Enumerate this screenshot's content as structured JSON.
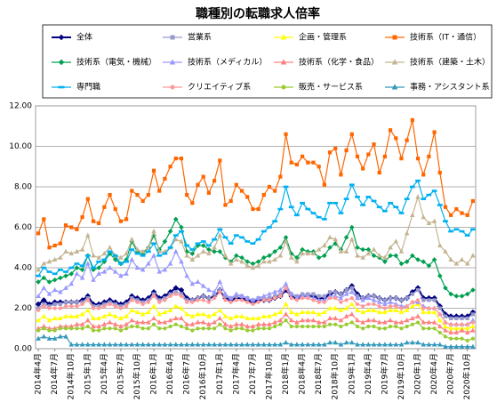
{
  "chart_data": {
    "type": "line",
    "title": "職種別の転職求人倍率",
    "categories": [
      "2014年4月",
      null,
      null,
      "2014年7月",
      null,
      null,
      "2014年10月",
      null,
      null,
      "2015年1月",
      null,
      null,
      "2015年4月",
      null,
      null,
      "2015年7月",
      null,
      null,
      "2015年10月",
      null,
      null,
      "2016年1月",
      null,
      null,
      "2016年4月",
      null,
      null,
      "2016年7月",
      null,
      null,
      "2016年10月",
      null,
      null,
      "2017年1月",
      null,
      null,
      "2017年4月",
      null,
      null,
      "2017年7月",
      null,
      null,
      "2017年10月",
      null,
      null,
      "2018年1月",
      null,
      null,
      "2018年4月",
      null,
      null,
      "2018年7月",
      null,
      null,
      "2018年10月",
      null,
      null,
      "2019年1月",
      null,
      null,
      "2019年4月",
      null,
      null,
      "2019年7月",
      null,
      null,
      "2019年10月",
      null,
      null,
      "2020年1月",
      null,
      null,
      "2020年4月",
      null,
      null,
      "2020年7月",
      null,
      null,
      "2020年10月",
      null
    ],
    "ylim": [
      0,
      12
    ],
    "yticks": [
      {
        "value": 0,
        "label": "0.00"
      },
      {
        "value": 2,
        "label": "2.00"
      },
      {
        "value": 4,
        "label": "4.00"
      },
      {
        "value": 6,
        "label": "6.00"
      },
      {
        "value": 8,
        "label": "8.00"
      },
      {
        "value": 10,
        "label": "10.00"
      },
      {
        "value": 12,
        "label": "12.00"
      }
    ],
    "grid": true,
    "series": [
      {
        "name": "全体",
        "color": "#000080",
        "marker": "diamond",
        "values": [
          2.2,
          2.4,
          2.2,
          2.3,
          2.3,
          2.3,
          2.3,
          2.3,
          2.4,
          2.6,
          2.2,
          2.2,
          2.3,
          2.4,
          2.3,
          2.2,
          2.3,
          2.6,
          2.5,
          2.4,
          2.5,
          2.8,
          2.5,
          2.6,
          2.8,
          3.0,
          2.9,
          2.5,
          2.4,
          2.5,
          2.6,
          2.5,
          2.6,
          2.9,
          2.5,
          2.4,
          2.5,
          2.5,
          2.4,
          2.3,
          2.4,
          2.4,
          2.4,
          2.5,
          2.6,
          2.9,
          2.6,
          2.5,
          2.6,
          2.6,
          2.6,
          2.5,
          2.5,
          2.7,
          2.8,
          2.7,
          2.9,
          3.1,
          2.7,
          2.5,
          2.6,
          2.6,
          2.5,
          2.4,
          2.5,
          2.5,
          2.4,
          2.5,
          2.8,
          3.0,
          2.5,
          2.5,
          2.5,
          2.1,
          1.7,
          1.6,
          1.6,
          1.6,
          1.6,
          1.8
        ]
      },
      {
        "name": "営業系",
        "color": "#9999cc",
        "marker": "square",
        "values": [
          2.0,
          2.2,
          2.1,
          2.2,
          2.2,
          2.3,
          2.3,
          2.3,
          2.3,
          2.5,
          2.1,
          2.1,
          2.2,
          2.3,
          2.2,
          2.1,
          2.2,
          2.5,
          2.4,
          2.3,
          2.4,
          2.7,
          2.4,
          2.5,
          2.7,
          2.8,
          2.7,
          2.4,
          2.4,
          2.5,
          2.6,
          2.5,
          2.7,
          2.9,
          2.6,
          2.5,
          2.6,
          2.6,
          2.5,
          2.4,
          2.5,
          2.5,
          2.5,
          2.6,
          2.7,
          3.0,
          2.7,
          2.6,
          2.7,
          2.7,
          2.7,
          2.6,
          2.6,
          2.8,
          2.8,
          2.7,
          2.9,
          3.0,
          2.6,
          2.5,
          2.6,
          2.6,
          2.5,
          2.4,
          2.5,
          2.5,
          2.4,
          2.5,
          2.7,
          2.9,
          2.4,
          2.4,
          2.4,
          2.0,
          1.6,
          1.5,
          1.5,
          1.5,
          1.5,
          1.7
        ]
      },
      {
        "name": "企画・管理系",
        "color": "#ffff00",
        "marker": "triangle",
        "values": [
          1.4,
          1.6,
          1.4,
          1.5,
          1.5,
          1.6,
          1.6,
          1.6,
          1.7,
          1.9,
          1.5,
          1.5,
          1.6,
          1.7,
          1.6,
          1.5,
          1.6,
          1.9,
          1.8,
          1.7,
          1.8,
          2.1,
          1.7,
          1.8,
          1.9,
          2.1,
          2.0,
          1.7,
          1.6,
          1.7,
          1.7,
          1.6,
          1.7,
          1.9,
          1.6,
          1.5,
          1.6,
          1.6,
          1.5,
          1.5,
          1.5,
          1.6,
          1.6,
          1.7,
          1.8,
          2.2,
          1.8,
          1.7,
          1.8,
          1.8,
          1.8,
          1.7,
          1.8,
          2.0,
          2.0,
          1.9,
          2.0,
          2.2,
          1.9,
          1.8,
          1.9,
          1.9,
          1.8,
          1.8,
          1.9,
          1.9,
          1.8,
          1.9,
          2.1,
          2.2,
          1.8,
          1.8,
          1.8,
          1.4,
          1.1,
          1.0,
          1.0,
          1.0,
          1.0,
          1.1
        ]
      },
      {
        "name": "技術系（IT・通信）",
        "color": "#ff6600",
        "marker": "square",
        "values": [
          5.7,
          6.4,
          5.0,
          5.1,
          5.2,
          6.1,
          6.0,
          5.9,
          6.5,
          7.4,
          6.3,
          6.2,
          7.0,
          7.6,
          6.9,
          6.3,
          6.4,
          7.8,
          7.6,
          7.3,
          7.6,
          8.8,
          7.8,
          8.4,
          9.0,
          9.4,
          9.4,
          7.6,
          7.2,
          8.1,
          8.5,
          7.7,
          8.3,
          9.3,
          7.1,
          7.3,
          8.1,
          7.8,
          7.5,
          6.9,
          6.9,
          7.6,
          8.0,
          7.8,
          8.5,
          10.6,
          9.2,
          9.1,
          9.5,
          9.2,
          9.2,
          9.0,
          8.1,
          9.7,
          9.9,
          8.6,
          9.8,
          10.6,
          9.5,
          8.9,
          9.6,
          10.1,
          8.7,
          9.5,
          10.8,
          10.4,
          9.4,
          10.3,
          11.3,
          9.4,
          8.6,
          9.5,
          10.7,
          8.7,
          7.0,
          6.6,
          6.9,
          6.7,
          6.6,
          7.3
        ]
      },
      {
        "name": "技術系（電気・機械）",
        "color": "#00a050",
        "marker": "diamond",
        "values": [
          3.3,
          3.5,
          3.3,
          3.4,
          3.5,
          3.6,
          3.7,
          4.0,
          3.9,
          4.6,
          3.9,
          4.0,
          4.3,
          4.7,
          4.4,
          4.2,
          4.4,
          5.3,
          4.8,
          4.7,
          5.0,
          5.6,
          4.9,
          5.3,
          5.8,
          6.4,
          6.0,
          4.8,
          4.7,
          5.1,
          5.1,
          4.9,
          4.8,
          4.8,
          4.5,
          4.3,
          4.6,
          4.5,
          4.3,
          4.2,
          4.3,
          4.5,
          4.6,
          4.8,
          5.0,
          5.5,
          4.7,
          4.5,
          4.9,
          4.8,
          4.8,
          4.5,
          4.6,
          5.0,
          5.2,
          4.9,
          5.5,
          6.0,
          5.0,
          4.9,
          4.9,
          4.6,
          4.5,
          4.3,
          4.6,
          4.6,
          4.2,
          4.3,
          4.6,
          4.4,
          4.3,
          4.1,
          4.4,
          3.6,
          3.0,
          2.7,
          2.6,
          2.6,
          2.7,
          2.9
        ]
      },
      {
        "name": "技術系（メディカル）",
        "color": "#9999ff",
        "marker": "triangle",
        "values": [
          2.6,
          3.0,
          2.7,
          2.9,
          2.8,
          3.0,
          3.2,
          3.7,
          3.5,
          4.2,
          3.4,
          3.7,
          3.8,
          4.0,
          3.8,
          3.6,
          3.7,
          4.4,
          4.0,
          3.9,
          4.2,
          4.6,
          3.8,
          3.9,
          4.2,
          4.8,
          4.3,
          3.6,
          3.2,
          3.3,
          3.1,
          2.9,
          2.8,
          3.3,
          2.7,
          2.5,
          2.7,
          2.6,
          2.5,
          2.4,
          2.5,
          2.6,
          2.7,
          2.8,
          2.9,
          3.2,
          2.7,
          2.5,
          2.6,
          2.6,
          2.5,
          2.4,
          2.4,
          2.6,
          2.6,
          2.5,
          2.7,
          2.8,
          2.5,
          2.4,
          2.5,
          2.4,
          2.3,
          2.2,
          2.3,
          2.2,
          2.1,
          2.1,
          2.3,
          2.3,
          2.1,
          2.0,
          2.0,
          1.7,
          1.3,
          1.2,
          1.2,
          1.2,
          1.2,
          1.4
        ]
      },
      {
        "name": "技術系（化学・食品）",
        "color": "#ff8080",
        "marker": "triangle",
        "values": [
          1.0,
          1.1,
          1.0,
          1.0,
          1.1,
          1.1,
          1.1,
          1.2,
          1.2,
          1.4,
          1.1,
          1.1,
          1.2,
          1.3,
          1.2,
          1.1,
          1.2,
          1.4,
          1.3,
          1.3,
          1.3,
          1.5,
          1.3,
          1.3,
          1.4,
          1.5,
          1.5,
          1.2,
          1.2,
          1.3,
          1.3,
          1.2,
          1.3,
          1.5,
          1.2,
          1.1,
          1.2,
          1.2,
          1.1,
          1.1,
          1.2,
          1.2,
          1.2,
          1.3,
          1.4,
          1.7,
          1.4,
          1.3,
          1.4,
          1.4,
          1.4,
          1.3,
          1.3,
          1.5,
          1.5,
          1.4,
          1.6,
          1.7,
          1.4,
          1.3,
          1.4,
          1.4,
          1.3,
          1.3,
          1.4,
          1.3,
          1.3,
          1.4,
          1.5,
          1.6,
          1.3,
          1.3,
          1.3,
          1.1,
          0.9,
          0.8,
          0.8,
          0.9,
          0.8,
          0.9
        ]
      },
      {
        "name": "技術系（建築・土木）",
        "color": "#c4b492",
        "marker": "triangle",
        "values": [
          3.9,
          4.2,
          4.3,
          4.4,
          4.5,
          4.8,
          4.7,
          4.8,
          4.9,
          5.6,
          4.6,
          4.5,
          4.7,
          5.0,
          4.6,
          4.5,
          4.7,
          5.4,
          4.9,
          4.8,
          5.0,
          5.8,
          4.8,
          4.8,
          5.0,
          5.4,
          5.3,
          4.6,
          4.4,
          4.6,
          4.8,
          4.7,
          5.0,
          5.6,
          4.6,
          4.2,
          4.4,
          4.3,
          4.1,
          4.0,
          4.1,
          4.3,
          4.3,
          4.4,
          4.6,
          5.3,
          4.5,
          4.3,
          4.7,
          4.7,
          4.7,
          4.9,
          5.1,
          5.5,
          5.4,
          4.8,
          4.8,
          5.4,
          4.6,
          4.5,
          4.7,
          4.9,
          4.6,
          4.5,
          5.0,
          5.3,
          4.8,
          5.7,
          6.6,
          7.5,
          6.5,
          6.2,
          6.3,
          5.1,
          4.8,
          4.4,
          4.2,
          4.4,
          4.2,
          4.6
        ]
      },
      {
        "name": "専門職",
        "color": "#00b0f0",
        "marker": "dash",
        "values": [
          3.6,
          4.0,
          3.8,
          3.7,
          3.9,
          3.8,
          4.0,
          4.2,
          4.1,
          4.6,
          4.0,
          4.3,
          4.4,
          4.8,
          4.6,
          4.2,
          4.3,
          4.9,
          4.7,
          4.6,
          4.8,
          5.2,
          4.6,
          4.7,
          5.0,
          5.6,
          5.8,
          5.1,
          4.9,
          5.2,
          5.3,
          5.1,
          5.4,
          5.9,
          5.5,
          5.2,
          5.6,
          5.5,
          5.3,
          5.2,
          5.4,
          5.8,
          6.0,
          6.3,
          6.9,
          8.0,
          7.0,
          6.6,
          7.2,
          6.9,
          6.7,
          6.5,
          6.4,
          7.2,
          7.2,
          6.7,
          7.4,
          8.1,
          7.5,
          7.1,
          7.5,
          7.3,
          7.0,
          6.8,
          7.2,
          7.0,
          6.7,
          7.4,
          8.0,
          8.3,
          7.4,
          7.6,
          7.8,
          7.1,
          6.3,
          5.8,
          5.9,
          5.8,
          5.6,
          5.9
        ]
      },
      {
        "name": "クリエイティブ系",
        "color": "#ff9999",
        "marker": "circle",
        "values": [
          1.9,
          2.1,
          2.0,
          2.0,
          2.0,
          2.1,
          2.1,
          2.1,
          2.2,
          2.4,
          2.0,
          2.0,
          2.1,
          2.2,
          2.1,
          2.0,
          2.1,
          2.4,
          2.3,
          2.2,
          2.3,
          2.6,
          2.3,
          2.4,
          2.6,
          2.7,
          2.6,
          2.3,
          2.3,
          2.4,
          2.4,
          2.3,
          2.5,
          2.8,
          2.4,
          2.3,
          2.4,
          2.4,
          2.3,
          2.2,
          2.3,
          2.4,
          2.4,
          2.5,
          2.6,
          3.0,
          2.5,
          2.4,
          2.5,
          2.5,
          2.4,
          2.3,
          2.3,
          2.5,
          2.5,
          2.3,
          2.4,
          2.5,
          2.2,
          2.1,
          2.2,
          2.2,
          2.1,
          2.0,
          2.1,
          2.1,
          2.0,
          2.1,
          2.3,
          2.4,
          2.0,
          2.0,
          2.0,
          1.7,
          1.3,
          1.2,
          1.2,
          1.2,
          1.2,
          1.3
        ]
      },
      {
        "name": "販売・サービス系",
        "color": "#99cc33",
        "marker": "circle",
        "values": [
          0.9,
          1.0,
          0.9,
          0.9,
          1.0,
          1.0,
          1.0,
          1.0,
          1.0,
          1.1,
          0.9,
          0.9,
          1.0,
          1.0,
          1.0,
          0.9,
          1.0,
          1.1,
          1.1,
          1.0,
          1.0,
          1.2,
          1.0,
          1.0,
          1.1,
          1.2,
          1.1,
          1.0,
          0.9,
          1.0,
          1.0,
          1.0,
          1.0,
          1.2,
          1.0,
          0.9,
          1.0,
          1.0,
          0.9,
          0.9,
          1.0,
          1.0,
          1.0,
          1.1,
          1.2,
          1.4,
          1.1,
          1.1,
          1.1,
          1.1,
          1.1,
          1.1,
          1.1,
          1.2,
          1.2,
          1.1,
          1.2,
          1.3,
          1.1,
          1.0,
          1.1,
          1.1,
          1.0,
          1.0,
          1.1,
          1.1,
          1.0,
          1.1,
          1.2,
          1.3,
          1.0,
          1.0,
          1.0,
          0.8,
          0.6,
          0.5,
          0.5,
          0.5,
          0.4,
          0.5
        ]
      },
      {
        "name": "事務・アシスタント系",
        "color": "#3399bb",
        "marker": "triangle",
        "values": [
          0.5,
          0.6,
          0.5,
          0.5,
          0.6,
          0.6,
          0.2,
          0.2,
          0.2,
          0.2,
          0.2,
          0.2,
          0.2,
          0.2,
          0.2,
          0.2,
          0.2,
          0.2,
          0.2,
          0.2,
          0.2,
          0.2,
          0.2,
          0.2,
          0.2,
          0.2,
          0.2,
          0.2,
          0.2,
          0.2,
          0.2,
          0.2,
          0.2,
          0.2,
          0.2,
          0.2,
          0.2,
          0.2,
          0.2,
          0.2,
          0.2,
          0.2,
          0.2,
          0.2,
          0.2,
          0.3,
          0.2,
          0.2,
          0.2,
          0.2,
          0.2,
          0.2,
          0.2,
          0.3,
          0.3,
          0.2,
          0.3,
          0.3,
          0.2,
          0.2,
          0.2,
          0.2,
          0.2,
          0.2,
          0.2,
          0.2,
          0.2,
          0.3,
          0.3,
          0.3,
          0.2,
          0.2,
          0.2,
          0.2,
          0.1,
          0.1,
          0.1,
          0.1,
          0.1,
          0.1
        ]
      }
    ]
  }
}
